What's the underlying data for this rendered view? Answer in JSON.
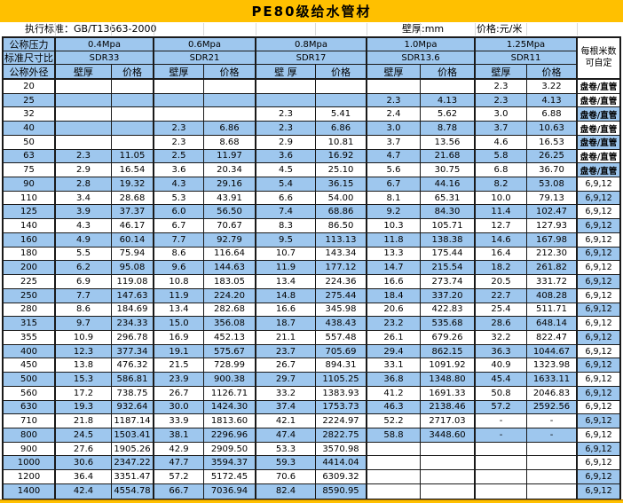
{
  "title": "PE80级给水管材",
  "meta": {
    "standard": "执行标准：GB/T13663-2000",
    "wall_unit": "壁厚:mm",
    "price_unit": "价格:元/米"
  },
  "colors": {
    "title_bg": "#FFC000",
    "band_blue": "#9EC7EE",
    "grid": "#1a1a1a",
    "strip_bg": "#FFC000"
  },
  "columns_header": {
    "pressure_label": "公称压力",
    "sdr_label": "标准尺寸比",
    "diameter_label": "公称外径",
    "groups": [
      {
        "pressure": "0.4Mpa",
        "sdr": "SDR33",
        "wall": "壁厚",
        "price": "价格"
      },
      {
        "pressure": "0.6Mpa",
        "sdr": "SDR21",
        "wall": "壁厚",
        "price": "价格"
      },
      {
        "pressure": "0.8Mpa",
        "sdr": "SDR17",
        "wall": "壁 厚",
        "price": "价格"
      },
      {
        "pressure": "1.0Mpa",
        "sdr": "SDR13.6",
        "wall": "壁厚",
        "price": "价格"
      },
      {
        "pressure": "1.25Mpa",
        "sdr": "SDR11",
        "wall": "壁厚",
        "price": "价格"
      }
    ],
    "note_header": {
      "line1": "每根米数",
      "line2": "可自定"
    }
  },
  "table": {
    "rows": [
      {
        "dia": "20",
        "cells": [
          "",
          "",
          "",
          "",
          "",
          "",
          "",
          "",
          "2.3",
          "3.22"
        ],
        "note": "盘卷/直管",
        "note_bold": true,
        "note_blue": false
      },
      {
        "dia": "25",
        "cells": [
          "",
          "",
          "",
          "",
          "",
          "",
          "2.3",
          "4.13",
          "2.3",
          "4.13"
        ],
        "note": "盘卷/直管",
        "note_bold": true,
        "note_blue": false
      },
      {
        "dia": "32",
        "cells": [
          "",
          "",
          "",
          "",
          "2.3",
          "5.41",
          "2.4",
          "5.62",
          "3.0",
          "6.88"
        ],
        "note": "盘卷/直管",
        "note_bold": true,
        "note_blue": true
      },
      {
        "dia": "40",
        "cells": [
          "",
          "",
          "2.3",
          "6.86",
          "2.3",
          "6.86",
          "3.0",
          "8.78",
          "3.7",
          "10.63"
        ],
        "note": "盘卷/直管",
        "note_bold": true,
        "note_blue": false
      },
      {
        "dia": "50",
        "cells": [
          "",
          "",
          "2.3",
          "8.68",
          "2.9",
          "10.81",
          "3.7",
          "13.56",
          "4.6",
          "16.53"
        ],
        "note": "盘卷/直管",
        "note_bold": true,
        "note_blue": true
      },
      {
        "dia": "63",
        "cells": [
          "2.3",
          "11.05",
          "2.5",
          "11.97",
          "3.6",
          "16.92",
          "4.7",
          "21.68",
          "5.8",
          "26.25"
        ],
        "note": "盘卷/直管",
        "note_bold": true,
        "note_blue": false
      },
      {
        "dia": "75",
        "cells": [
          "2.9",
          "16.54",
          "3.6",
          "20.34",
          "4.5",
          "25.10",
          "5.6",
          "30.75",
          "6.8",
          "36.70"
        ],
        "note": "盘卷/直管",
        "note_bold": true,
        "note_blue": true
      },
      {
        "dia": "90",
        "cells": [
          "2.8",
          "19.32",
          "4.3",
          "29.16",
          "5.4",
          "36.15",
          "6.7",
          "44.16",
          "8.2",
          "53.08"
        ],
        "note": "6,9,12",
        "note_bold": false,
        "note_blue": false
      },
      {
        "dia": "110",
        "cells": [
          "3.4",
          "28.68",
          "5.3",
          "43.91",
          "6.6",
          "54.00",
          "8.1",
          "65.31",
          "10.0",
          "79.13"
        ],
        "note": "6,9,12",
        "note_bold": false,
        "note_blue": true
      },
      {
        "dia": "125",
        "cells": [
          "3.9",
          "37.37",
          "6.0",
          "56.50",
          "7.4",
          "68.86",
          "9.2",
          "84.30",
          "11.4",
          "102.47"
        ],
        "note": "6,9,12",
        "note_bold": false,
        "note_blue": false
      },
      {
        "dia": "140",
        "cells": [
          "4.3",
          "46.17",
          "6.7",
          "70.67",
          "8.3",
          "86.50",
          "10.3",
          "105.71",
          "12.7",
          "127.93"
        ],
        "note": "6,9,12",
        "note_bold": false,
        "note_blue": true
      },
      {
        "dia": "160",
        "cells": [
          "4.9",
          "60.14",
          "7.7",
          "92.79",
          "9.5",
          "113.13",
          "11.8",
          "138.38",
          "14.6",
          "167.98"
        ],
        "note": "6,9,12",
        "note_bold": false,
        "note_blue": false
      },
      {
        "dia": "180",
        "cells": [
          "5.5",
          "75.94",
          "8.6",
          "116.64",
          "10.7",
          "143.34",
          "13.3",
          "175.44",
          "16.4",
          "212.30"
        ],
        "note": "6,9,12",
        "note_bold": false,
        "note_blue": true
      },
      {
        "dia": "200",
        "cells": [
          "6.2",
          "95.08",
          "9.6",
          "144.63",
          "11.9",
          "177.12",
          "14.7",
          "215.54",
          "18.2",
          "261.82"
        ],
        "note": "6,9,12",
        "note_bold": false,
        "note_blue": false
      },
      {
        "dia": "225",
        "cells": [
          "6.9",
          "119.08",
          "10.8",
          "183.05",
          "13.4",
          "224.36",
          "16.6",
          "273.74",
          "20.5",
          "331.72"
        ],
        "note": "6,9,12",
        "note_bold": false,
        "note_blue": true
      },
      {
        "dia": "250",
        "cells": [
          "7.7",
          "147.63",
          "11.9",
          "224.20",
          "14.8",
          "275.44",
          "18.4",
          "337.20",
          "22.7",
          "408.28"
        ],
        "note": "6,9,12",
        "note_bold": false,
        "note_blue": false
      },
      {
        "dia": "280",
        "cells": [
          "8.6",
          "184.69",
          "13.4",
          "282.68",
          "16.6",
          "345.98",
          "20.6",
          "422.83",
          "25.4",
          "511.71"
        ],
        "note": "6,9,12",
        "note_bold": false,
        "note_blue": true
      },
      {
        "dia": "315",
        "cells": [
          "9.7",
          "234.33",
          "15.0",
          "356.08",
          "18.7",
          "438.43",
          "23.2",
          "535.68",
          "28.6",
          "648.14"
        ],
        "note": "6,9,12",
        "note_bold": false,
        "note_blue": false
      },
      {
        "dia": "355",
        "cells": [
          "10.9",
          "296.78",
          "16.9",
          "452.13",
          "21.1",
          "557.48",
          "26.1",
          "679.26",
          "32.2",
          "822.47"
        ],
        "note": "6,9,12",
        "note_bold": false,
        "note_blue": true
      },
      {
        "dia": "400",
        "cells": [
          "12.3",
          "377.34",
          "19.1",
          "575.67",
          "23.7",
          "705.69",
          "29.4",
          "862.15",
          "36.3",
          "1044.67"
        ],
        "note": "6,9,12",
        "note_bold": false,
        "note_blue": false
      },
      {
        "dia": "450",
        "cells": [
          "13.8",
          "476.32",
          "21.5",
          "728.99",
          "26.7",
          "894.31",
          "33.1",
          "1091.92",
          "40.9",
          "1323.98"
        ],
        "note": "6,9,12",
        "note_bold": false,
        "note_blue": true
      },
      {
        "dia": "500",
        "cells": [
          "15.3",
          "586.81",
          "23.9",
          "900.38",
          "29.7",
          "1105.25",
          "36.8",
          "1348.80",
          "45.4",
          "1633.11"
        ],
        "note": "6,9,12",
        "note_bold": false,
        "note_blue": false
      },
      {
        "dia": "560",
        "cells": [
          "17.2",
          "738.75",
          "26.7",
          "1126.71",
          "33.2",
          "1383.93",
          "41.2",
          "1691.33",
          "50.8",
          "2046.83"
        ],
        "note": "6,9,12",
        "note_bold": false,
        "note_blue": true
      },
      {
        "dia": "630",
        "cells": [
          "19.3",
          "932.64",
          "30.0",
          "1424.30",
          "37.4",
          "1753.73",
          "46.3",
          "2138.46",
          "57.2",
          "2592.56"
        ],
        "note": "6,9,12",
        "note_bold": false,
        "note_blue": false
      },
      {
        "dia": "710",
        "cells": [
          "21.8",
          "1187.14",
          "33.9",
          "1813.60",
          "42.1",
          "2224.97",
          "52.2",
          "2717.03",
          "-",
          "-"
        ],
        "note": "6,9,12",
        "note_bold": false,
        "note_blue": true
      },
      {
        "dia": "800",
        "cells": [
          "24.5",
          "1503.41",
          "38.1",
          "2296.96",
          "47.4",
          "2822.75",
          "58.8",
          "3448.60",
          "-",
          "-"
        ],
        "note": "6,9,12",
        "note_bold": false,
        "note_blue": false
      },
      {
        "dia": "900",
        "cells": [
          "27.6",
          "1905.26",
          "42.9",
          "2909.50",
          "53.3",
          "3570.98",
          "",
          "",
          "",
          ""
        ],
        "note": "6,9,12",
        "note_bold": false,
        "note_blue": true,
        "empty_white": true
      },
      {
        "dia": "1000",
        "cells": [
          "30.6",
          "2347.22",
          "47.7",
          "3594.37",
          "59.3",
          "4414.04",
          "",
          "",
          "",
          ""
        ],
        "note": "6,9,12",
        "note_bold": false,
        "note_blue": false,
        "empty_white": true
      },
      {
        "dia": "1200",
        "cells": [
          "36.4",
          "3351.47",
          "57.2",
          "5172.45",
          "70.6",
          "6309.32",
          "",
          "",
          "",
          ""
        ],
        "note": "6,9,12",
        "note_bold": false,
        "note_blue": true,
        "empty_white": true
      },
      {
        "dia": "1400",
        "cells": [
          "42.4",
          "4554.78",
          "66.7",
          "7036.94",
          "82.4",
          "8590.95",
          "",
          "",
          "",
          ""
        ],
        "note": "6,9,12",
        "note_bold": false,
        "note_blue": true,
        "empty_white": true
      }
    ]
  }
}
